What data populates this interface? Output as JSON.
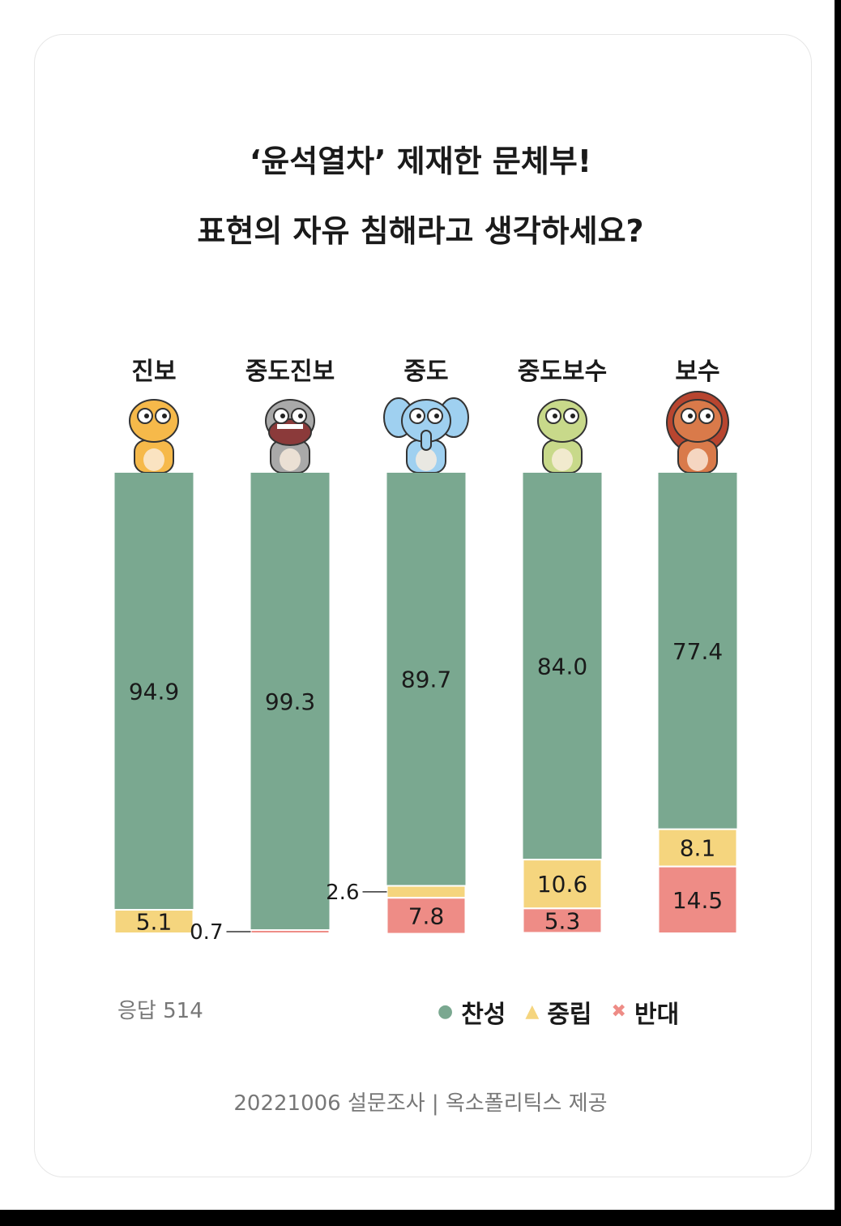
{
  "title_line1": "‘윤석열차’ 제재한 문체부!",
  "title_line2": "표현의 자유 침해라고 생각하세요?",
  "respondents": "응답 514",
  "source": "20221006 설문조사 | 옥소폴리틱스 제공",
  "legend": [
    {
      "symbol": "●",
      "label": "찬성",
      "color": "#7aa890"
    },
    {
      "symbol": "▲",
      "label": "중립",
      "color": "#f5d57e"
    },
    {
      "symbol": "✖",
      "label": "반대",
      "color": "#ee8c86"
    }
  ],
  "chart_data": {
    "type": "bar",
    "stacked": true,
    "categories": [
      "진보",
      "중도진보",
      "중도",
      "중도보수",
      "보수"
    ],
    "series": [
      {
        "name": "찬성",
        "color": "#7aa890",
        "values": [
          94.9,
          99.3,
          89.7,
          84.0,
          77.4
        ],
        "labels": [
          "94.9",
          "99.3",
          "89.7",
          "84.0",
          "77.4"
        ]
      },
      {
        "name": "중립",
        "color": "#f5d57e",
        "values": [
          5.1,
          0,
          2.6,
          10.6,
          8.1
        ],
        "labels": [
          "5.1",
          "",
          "2.6",
          "10.6",
          "8.1"
        ]
      },
      {
        "name": "반대",
        "color": "#ee8c86",
        "values": [
          0,
          0.7,
          7.8,
          5.3,
          14.5
        ],
        "labels": [
          "",
          "0.7",
          "7.8",
          "5.3",
          "14.5"
        ]
      }
    ],
    "mascots": [
      "tiger",
      "hippo",
      "elephant",
      "lizard",
      "lion"
    ],
    "mascot_colors": [
      "#f6b94a",
      "#a9a9a9",
      "#9fd0f0",
      "#c8d98a",
      "#d97a4a"
    ],
    "ylim": [
      0,
      100
    ]
  }
}
